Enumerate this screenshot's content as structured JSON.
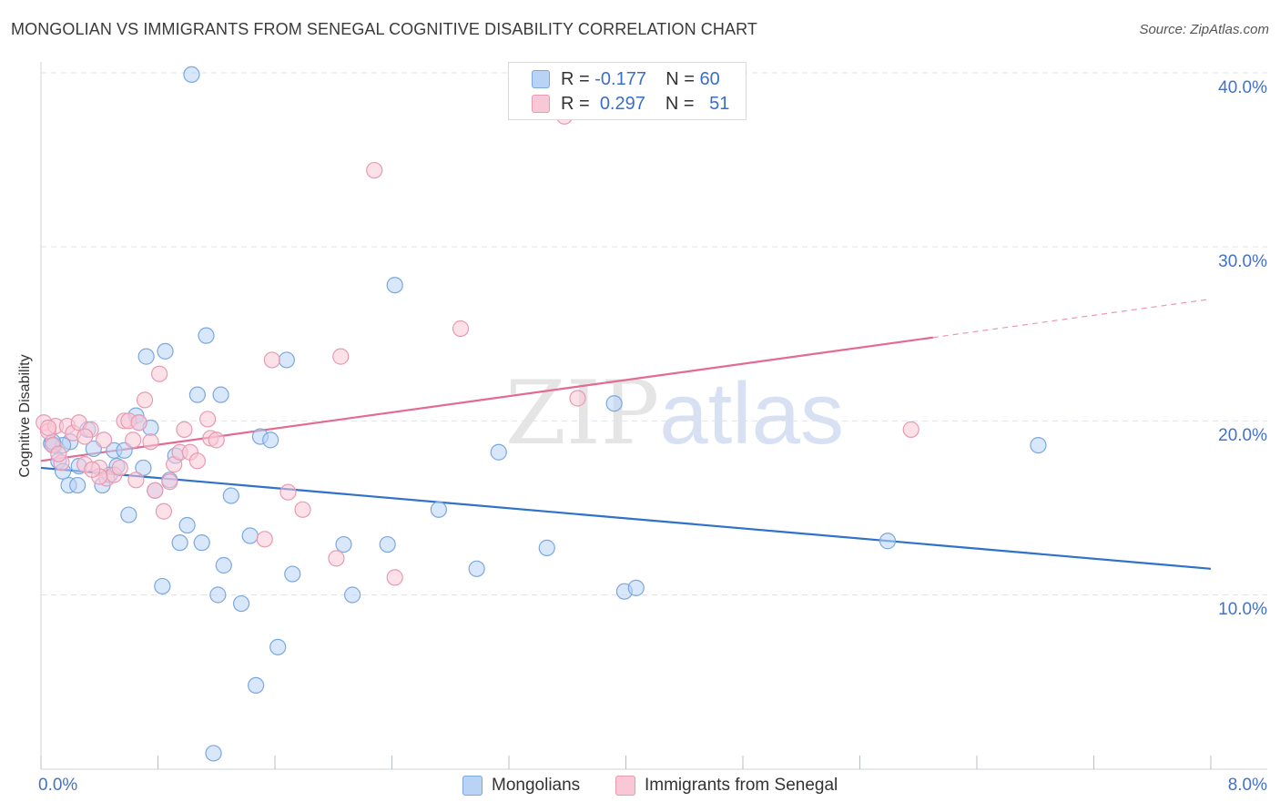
{
  "title": "MONGOLIAN VS IMMIGRANTS FROM SENEGAL COGNITIVE DISABILITY CORRELATION CHART",
  "source": "Source: ZipAtlas.com",
  "watermark": {
    "zip": "ZIP",
    "atlas": "atlas"
  },
  "legend": {
    "rows": [
      {
        "r_label": "R =",
        "r_value": "-0.177",
        "n_label": "N =",
        "n_value": "60"
      },
      {
        "r_label": "R =",
        "r_value": "0.297",
        "n_label": "N =",
        "n_value": "51"
      }
    ]
  },
  "colors": {
    "mongolians_fill": "#b8d3f5",
    "mongolians_stroke": "#7aa8e0",
    "mongolians_line": "#2f72c9",
    "senegal_fill": "#f9c8d6",
    "senegal_stroke": "#e89ab2",
    "senegal_line": "#e26a94",
    "grid": "#dfe3e8",
    "tick_text": "#4472c4"
  },
  "chart_data": {
    "type": "scatter",
    "title": "MONGOLIAN VS IMMIGRANTS FROM SENEGAL COGNITIVE DISABILITY CORRELATION CHART",
    "xlabel": "",
    "ylabel": "Cognitive Disability",
    "xlim": [
      0,
      8
    ],
    "ylim": [
      0,
      40
    ],
    "x_tick_labels": [
      "0.0%",
      "8.0%"
    ],
    "y_ticks": [
      10,
      20,
      30,
      40
    ],
    "y_tick_labels": [
      "10.0%",
      "20.0%",
      "30.0%",
      "40.0%"
    ],
    "legend_position": "top-center",
    "series": [
      {
        "name": "Mongolians",
        "r": -0.177,
        "n": 60,
        "trend": {
          "x0": 0,
          "y0": 17.3,
          "x1": 8,
          "y1": 11.5,
          "solid_to": 8
        },
        "points": [
          [
            1.03,
            39.9
          ],
          [
            0.07,
            18.7
          ],
          [
            0.09,
            18.6
          ],
          [
            0.12,
            17.7
          ],
          [
            0.15,
            17.1
          ],
          [
            0.19,
            16.3
          ],
          [
            0.2,
            18.8
          ],
          [
            0.26,
            17.4
          ],
          [
            0.32,
            19.5
          ],
          [
            0.36,
            18.4
          ],
          [
            0.42,
            16.3
          ],
          [
            0.47,
            16.9
          ],
          [
            0.5,
            18.3
          ],
          [
            0.52,
            17.4
          ],
          [
            0.57,
            18.3
          ],
          [
            0.6,
            14.6
          ],
          [
            0.65,
            20.3
          ],
          [
            0.67,
            19.9
          ],
          [
            0.7,
            17.3
          ],
          [
            0.72,
            23.7
          ],
          [
            0.75,
            19.6
          ],
          [
            0.78,
            16.0
          ],
          [
            0.83,
            10.5
          ],
          [
            0.85,
            24.0
          ],
          [
            0.88,
            16.6
          ],
          [
            0.92,
            18.0
          ],
          [
            0.95,
            13.0
          ],
          [
            1.0,
            14.0
          ],
          [
            1.07,
            21.5
          ],
          [
            1.1,
            13.0
          ],
          [
            1.13,
            24.9
          ],
          [
            1.18,
            0.9
          ],
          [
            1.21,
            10.0
          ],
          [
            1.23,
            21.5
          ],
          [
            1.25,
            11.7
          ],
          [
            1.3,
            15.7
          ],
          [
            1.37,
            9.5
          ],
          [
            1.43,
            13.4
          ],
          [
            1.47,
            4.8
          ],
          [
            1.5,
            19.1
          ],
          [
            1.57,
            18.9
          ],
          [
            1.62,
            7.0
          ],
          [
            1.68,
            23.5
          ],
          [
            1.72,
            11.2
          ],
          [
            2.07,
            12.9
          ],
          [
            2.13,
            10.0
          ],
          [
            2.37,
            12.9
          ],
          [
            2.42,
            27.8
          ],
          [
            2.72,
            14.9
          ],
          [
            2.98,
            11.5
          ],
          [
            3.13,
            18.2
          ],
          [
            3.46,
            12.7
          ],
          [
            3.92,
            21.0
          ],
          [
            3.99,
            10.2
          ],
          [
            4.07,
            10.4
          ],
          [
            5.79,
            13.1
          ],
          [
            6.82,
            18.6
          ],
          [
            0.25,
            16.3
          ],
          [
            0.15,
            18.6
          ],
          [
            0.08,
            18.8
          ]
        ]
      },
      {
        "name": "Immigrants from Senegal",
        "r": 0.297,
        "n": 51,
        "trend": {
          "x0": 0,
          "y0": 17.7,
          "x1": 8,
          "y1": 27.0,
          "solid_to": 6.1
        },
        "points": [
          [
            0.02,
            19.9
          ],
          [
            0.05,
            19.4
          ],
          [
            0.08,
            18.6
          ],
          [
            0.1,
            19.7
          ],
          [
            0.14,
            17.6
          ],
          [
            0.18,
            19.7
          ],
          [
            0.22,
            19.3
          ],
          [
            0.26,
            19.9
          ],
          [
            0.3,
            17.5
          ],
          [
            0.34,
            19.5
          ],
          [
            0.4,
            17.3
          ],
          [
            0.43,
            18.9
          ],
          [
            0.45,
            16.7
          ],
          [
            0.5,
            16.9
          ],
          [
            0.54,
            17.3
          ],
          [
            0.57,
            20.0
          ],
          [
            0.6,
            20.0
          ],
          [
            0.63,
            18.9
          ],
          [
            0.67,
            19.9
          ],
          [
            0.71,
            21.2
          ],
          [
            0.75,
            18.8
          ],
          [
            0.78,
            16.0
          ],
          [
            0.81,
            22.7
          ],
          [
            0.84,
            14.8
          ],
          [
            0.88,
            16.5
          ],
          [
            0.91,
            17.5
          ],
          [
            0.95,
            18.2
          ],
          [
            0.98,
            19.5
          ],
          [
            1.02,
            18.2
          ],
          [
            1.07,
            17.7
          ],
          [
            1.14,
            20.1
          ],
          [
            1.16,
            19.0
          ],
          [
            1.2,
            18.9
          ],
          [
            1.53,
            13.2
          ],
          [
            1.58,
            23.5
          ],
          [
            1.69,
            15.9
          ],
          [
            1.79,
            14.9
          ],
          [
            2.02,
            12.1
          ],
          [
            2.05,
            23.7
          ],
          [
            2.28,
            34.4
          ],
          [
            2.42,
            11.0
          ],
          [
            2.87,
            25.3
          ],
          [
            3.58,
            37.5
          ],
          [
            3.67,
            21.3
          ],
          [
            5.95,
            19.5
          ],
          [
            0.3,
            19.1
          ],
          [
            0.4,
            16.8
          ],
          [
            0.35,
            17.2
          ],
          [
            0.12,
            18.1
          ],
          [
            0.65,
            16.6
          ],
          [
            0.05,
            19.6
          ]
        ]
      }
    ]
  },
  "bottom_legend": [
    "Mongolians",
    "Immigrants from Senegal"
  ]
}
